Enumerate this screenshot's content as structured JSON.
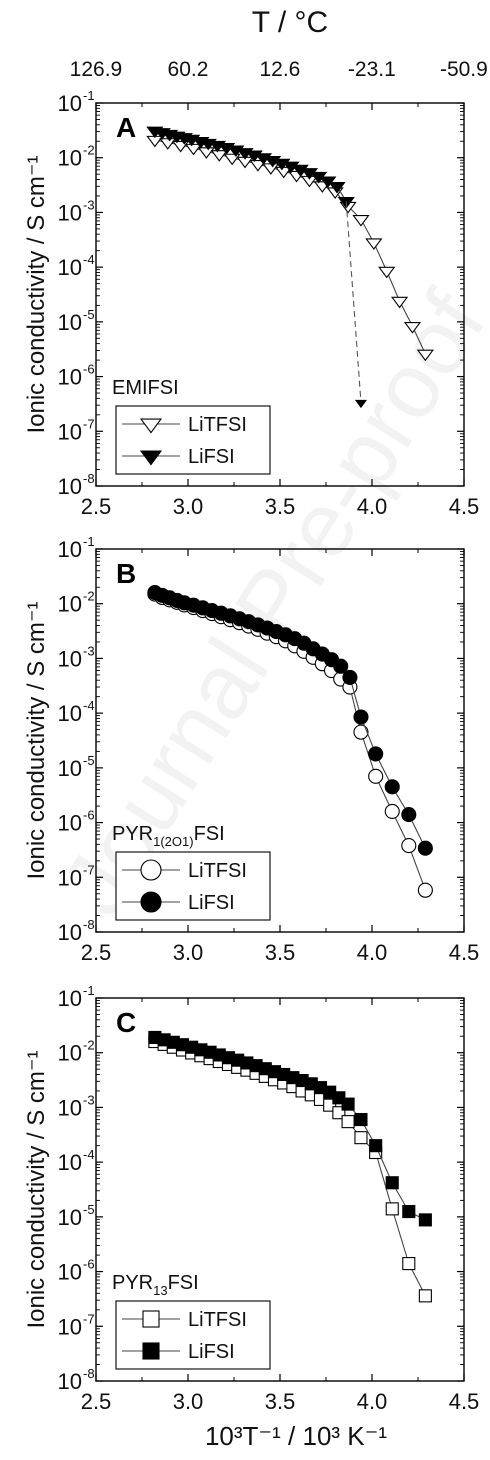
{
  "figure": {
    "top_axis_label": "T / °C",
    "top_tick_labels": [
      "126.9",
      "60.2",
      "12.6",
      "-23.1",
      "-50.9"
    ],
    "x_axis_label": "10³T⁻¹ / 10³ K⁻¹",
    "x_tick_labels": [
      "2.5",
      "3.0",
      "3.5",
      "4.0",
      "4.5"
    ],
    "y_axis_label": "Ionic conductivity / S cm⁻¹",
    "y_tick_exponents": [
      "-8",
      "-7",
      "-6",
      "-5",
      "-4",
      "-3",
      "-2",
      "-1"
    ],
    "watermark": "Journal Pre-proof"
  },
  "chart_data": [
    {
      "type": "line",
      "panel": "A",
      "legend_title": "EMIFSI",
      "xlim": [
        2.5,
        4.5
      ],
      "ylim": [
        1e-08,
        0.1
      ],
      "yscale": "log",
      "top_axis": {
        "label": "T / °C",
        "ticks": [
          126.9,
          60.2,
          12.6,
          -23.1,
          -50.9
        ]
      },
      "legend_position": "bottom-left",
      "series": [
        {
          "name": "LiTFSI",
          "marker": "triangle-down",
          "fill": "open",
          "line": "solid",
          "x": [
            2.82,
            2.89,
            2.96,
            3.03,
            3.1,
            3.17,
            3.24,
            3.31,
            3.38,
            3.45,
            3.52,
            3.59,
            3.66,
            3.73,
            3.8,
            3.87,
            3.94,
            4.01,
            4.08,
            4.15,
            4.22,
            4.29
          ],
          "y": [
            0.021,
            0.019,
            0.017,
            0.015,
            0.013,
            0.0115,
            0.0099,
            0.0087,
            0.0076,
            0.0066,
            0.0057,
            0.0048,
            0.0039,
            0.0031,
            0.0024,
            0.0013,
            0.00075,
            0.00028,
            8.5e-05,
            2.4e-05,
            8.3e-06,
            2.6e-06
          ]
        },
        {
          "name": "LiFSI",
          "marker": "triangle-down",
          "fill": "filled",
          "line": "solid",
          "x": [
            2.82,
            2.86,
            2.9,
            2.94,
            2.98,
            3.02,
            3.07,
            3.11,
            3.16,
            3.21,
            3.26,
            3.31,
            3.36,
            3.41,
            3.46,
            3.51,
            3.56,
            3.61,
            3.66,
            3.71,
            3.76,
            3.81,
            3.86
          ],
          "y": [
            0.031,
            0.029,
            0.027,
            0.025,
            0.0235,
            0.022,
            0.02,
            0.0185,
            0.017,
            0.0155,
            0.014,
            0.0125,
            0.0113,
            0.0101,
            0.009,
            0.008,
            0.0071,
            0.0062,
            0.0054,
            0.0046,
            0.0038,
            0.003,
            0.0016
          ]
        },
        {
          "name": "",
          "marker": "triangle-down",
          "fill": "filled",
          "line": "dashed",
          "x": [
            3.86,
            3.94
          ],
          "y": [
            0.0016,
            3.3e-07
          ]
        }
      ]
    },
    {
      "type": "line",
      "panel": "B",
      "legend_title": "PYR1(2O1)FSI",
      "xlim": [
        2.5,
        4.5
      ],
      "ylim": [
        1e-08,
        0.1
      ],
      "yscale": "log",
      "legend_position": "bottom-left",
      "series": [
        {
          "name": "LiTFSI",
          "marker": "circle",
          "fill": "open",
          "line": "solid",
          "x": [
            2.82,
            2.86,
            2.9,
            2.94,
            2.98,
            3.03,
            3.08,
            3.13,
            3.18,
            3.23,
            3.28,
            3.33,
            3.38,
            3.43,
            3.48,
            3.53,
            3.58,
            3.63,
            3.68,
            3.73,
            3.78,
            3.83,
            3.88,
            3.94,
            4.02,
            4.11,
            4.2,
            4.29
          ],
          "y": [
            0.015,
            0.013,
            0.0118,
            0.0106,
            0.0095,
            0.0085,
            0.0075,
            0.0066,
            0.0058,
            0.0051,
            0.0045,
            0.0039,
            0.0034,
            0.0029,
            0.0025,
            0.0021,
            0.0017,
            0.00135,
            0.00105,
            0.0008,
            0.0006,
            0.00042,
            0.0003,
            4.5e-05,
            7e-06,
            1.6e-06,
            3.8e-07,
            5.8e-08
          ]
        },
        {
          "name": "LiFSI",
          "marker": "circle",
          "fill": "filled",
          "line": "solid",
          "x": [
            2.82,
            2.86,
            2.9,
            2.94,
            2.98,
            3.03,
            3.08,
            3.13,
            3.18,
            3.23,
            3.28,
            3.33,
            3.38,
            3.43,
            3.48,
            3.53,
            3.58,
            3.63,
            3.68,
            3.73,
            3.78,
            3.83,
            3.88,
            3.94,
            4.02,
            4.11,
            4.2,
            4.29
          ],
          "y": [
            0.016,
            0.0142,
            0.0128,
            0.0115,
            0.0104,
            0.0094,
            0.0084,
            0.0075,
            0.0067,
            0.006,
            0.0053,
            0.0047,
            0.0041,
            0.0036,
            0.0031,
            0.0027,
            0.0023,
            0.0019,
            0.0015,
            0.0012,
            0.00095,
            0.00072,
            0.00045,
            8.5e-05,
            1.8e-05,
            4.5e-06,
            1.4e-06,
            3.4e-07
          ]
        }
      ]
    },
    {
      "type": "line",
      "panel": "C",
      "legend_title": "PYR13FSI",
      "xlim": [
        2.5,
        4.5
      ],
      "ylim": [
        1e-08,
        0.1
      ],
      "yscale": "log",
      "legend_position": "bottom-left",
      "series": [
        {
          "name": "LiTFSI",
          "marker": "square",
          "fill": "open",
          "line": "solid",
          "x": [
            2.82,
            2.87,
            2.92,
            2.97,
            3.02,
            3.07,
            3.12,
            3.17,
            3.22,
            3.27,
            3.32,
            3.37,
            3.42,
            3.47,
            3.52,
            3.57,
            3.62,
            3.67,
            3.72,
            3.77,
            3.82,
            3.87,
            3.94,
            4.02,
            4.11,
            4.2,
            4.29
          ],
          "y": [
            0.016,
            0.0142,
            0.0126,
            0.0112,
            0.0099,
            0.0088,
            0.0078,
            0.0069,
            0.0061,
            0.0054,
            0.0048,
            0.0042,
            0.0037,
            0.0032,
            0.0028,
            0.0024,
            0.002,
            0.0017,
            0.0014,
            0.0011,
            0.0008,
            0.00055,
            0.00028,
            0.00015,
            1.4e-05,
            1.4e-06,
            3.6e-07
          ]
        },
        {
          "name": "LiFSI",
          "marker": "square",
          "fill": "filled",
          "line": "solid",
          "x": [
            2.82,
            2.87,
            2.92,
            2.97,
            3.02,
            3.07,
            3.12,
            3.17,
            3.22,
            3.27,
            3.32,
            3.37,
            3.42,
            3.47,
            3.52,
            3.57,
            3.62,
            3.67,
            3.72,
            3.77,
            3.82,
            3.87,
            3.94,
            4.02,
            4.11,
            4.2,
            4.29
          ],
          "y": [
            0.019,
            0.0172,
            0.0155,
            0.014,
            0.0126,
            0.0113,
            0.0102,
            0.0091,
            0.0081,
            0.0073,
            0.0065,
            0.0058,
            0.0051,
            0.0045,
            0.004,
            0.0035,
            0.0031,
            0.0027,
            0.0023,
            0.0019,
            0.0015,
            0.00115,
            0.0006,
            0.0002,
            4.2e-05,
            1.25e-05,
            8.8e-06
          ]
        }
      ]
    }
  ]
}
